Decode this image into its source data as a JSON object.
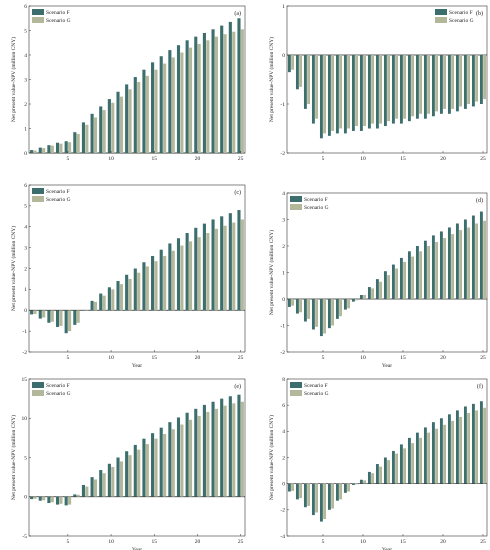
{
  "colors": {
    "scenario_f": "#3d6e6e",
    "scenario_g": "#b4b89a"
  },
  "chart_data": [
    {
      "type": "bar",
      "panel_label": "(a)",
      "ylabel": "Net present value-NPV (million CNY)",
      "xlabel": "",
      "ylim": [
        0,
        6
      ],
      "yticks": [
        0,
        1,
        2,
        3,
        4,
        5,
        6
      ],
      "xticks": [
        5,
        10,
        15,
        20,
        25
      ],
      "x": [
        1,
        2,
        3,
        4,
        5,
        6,
        7,
        8,
        9,
        10,
        11,
        12,
        13,
        14,
        15,
        16,
        17,
        18,
        19,
        20,
        21,
        22,
        23,
        24,
        25
      ],
      "legend": "top-left",
      "series": [
        {
          "name": "Scenario F",
          "values": [
            0.12,
            0.22,
            0.32,
            0.42,
            0.48,
            0.85,
            1.25,
            1.6,
            1.9,
            2.2,
            2.5,
            2.8,
            3.1,
            3.4,
            3.7,
            3.95,
            4.2,
            4.4,
            4.6,
            4.75,
            4.9,
            5.05,
            5.2,
            5.35,
            5.5
          ]
        },
        {
          "name": "Scenario G",
          "values": [
            0.1,
            0.2,
            0.3,
            0.38,
            0.44,
            0.78,
            1.15,
            1.45,
            1.75,
            2.05,
            2.3,
            2.6,
            2.9,
            3.15,
            3.4,
            3.65,
            3.9,
            4.1,
            4.3,
            4.45,
            4.6,
            4.75,
            4.85,
            4.95,
            5.05
          ]
        }
      ]
    },
    {
      "type": "bar",
      "panel_label": "(b)",
      "ylabel": "Net present value-NPV (million CNY)",
      "xlabel": "",
      "ylim": [
        -2,
        1
      ],
      "yticks": [
        -2,
        -1,
        0,
        1
      ],
      "xticks": [
        5,
        10,
        15,
        20,
        25
      ],
      "x": [
        1,
        2,
        3,
        4,
        5,
        6,
        7,
        8,
        9,
        10,
        11,
        12,
        13,
        14,
        15,
        16,
        17,
        18,
        19,
        20,
        21,
        22,
        23,
        24,
        25
      ],
      "legend": "top-right",
      "series": [
        {
          "name": "Scenario F",
          "values": [
            -0.35,
            -0.7,
            -1.1,
            -1.4,
            -1.7,
            -1.65,
            -1.6,
            -1.6,
            -1.55,
            -1.55,
            -1.5,
            -1.5,
            -1.45,
            -1.4,
            -1.4,
            -1.35,
            -1.3,
            -1.3,
            -1.25,
            -1.2,
            -1.2,
            -1.15,
            -1.1,
            -1.05,
            -1.0
          ]
        },
        {
          "name": "Scenario G",
          "values": [
            -0.3,
            -0.65,
            -1.0,
            -1.3,
            -1.6,
            -1.55,
            -1.5,
            -1.5,
            -1.45,
            -1.45,
            -1.4,
            -1.4,
            -1.35,
            -1.3,
            -1.3,
            -1.25,
            -1.2,
            -1.2,
            -1.15,
            -1.1,
            -1.1,
            -1.05,
            -1.0,
            -0.95,
            -0.9
          ]
        }
      ]
    },
    {
      "type": "bar",
      "panel_label": "(c)",
      "ylabel": "Net present value-NPV (million CNY)",
      "xlabel": "Year",
      "ylim": [
        -2,
        6
      ],
      "yticks": [
        -2,
        -1,
        0,
        1,
        2,
        3,
        4,
        5,
        6
      ],
      "xticks": [
        5,
        10,
        15,
        20,
        25
      ],
      "x": [
        1,
        2,
        3,
        4,
        5,
        6,
        7,
        8,
        9,
        10,
        11,
        12,
        13,
        14,
        15,
        16,
        17,
        18,
        19,
        20,
        21,
        22,
        23,
        24,
        25
      ],
      "legend": "top-left",
      "series": [
        {
          "name": "Scenario F",
          "values": [
            -0.2,
            -0.4,
            -0.6,
            -0.8,
            -1.1,
            -0.7,
            0.0,
            0.45,
            0.8,
            1.1,
            1.4,
            1.7,
            2.0,
            2.3,
            2.6,
            2.9,
            3.2,
            3.45,
            3.7,
            3.95,
            4.15,
            4.35,
            4.5,
            4.65,
            4.8
          ]
        },
        {
          "name": "Scenario G",
          "values": [
            -0.18,
            -0.35,
            -0.55,
            -0.75,
            -1.0,
            -0.6,
            0.0,
            0.4,
            0.7,
            1.0,
            1.25,
            1.5,
            1.8,
            2.1,
            2.35,
            2.6,
            2.85,
            3.1,
            3.3,
            3.5,
            3.7,
            3.9,
            4.05,
            4.2,
            4.35
          ]
        }
      ]
    },
    {
      "type": "bar",
      "panel_label": "(d)",
      "ylabel": "Net present value-NPV (million CNY)",
      "xlabel": "Year",
      "ylim": [
        -2,
        4
      ],
      "yticks": [
        -2,
        -1,
        0,
        1,
        2,
        3,
        4
      ],
      "xticks": [
        5,
        10,
        15,
        20,
        25
      ],
      "x": [
        1,
        2,
        3,
        4,
        5,
        6,
        7,
        8,
        9,
        10,
        11,
        12,
        13,
        14,
        15,
        16,
        17,
        18,
        19,
        20,
        21,
        22,
        23,
        24,
        25
      ],
      "legend": "top-left",
      "series": [
        {
          "name": "Scenario F",
          "values": [
            -0.3,
            -0.55,
            -0.85,
            -1.15,
            -1.4,
            -1.1,
            -0.75,
            -0.4,
            -0.1,
            0.15,
            0.45,
            0.75,
            1.05,
            1.3,
            1.55,
            1.8,
            2.0,
            2.2,
            2.4,
            2.55,
            2.7,
            2.85,
            3.0,
            3.15,
            3.3
          ]
        },
        {
          "name": "Scenario G",
          "values": [
            -0.25,
            -0.5,
            -0.75,
            -1.05,
            -1.3,
            -1.0,
            -0.65,
            -0.35,
            -0.05,
            0.15,
            0.4,
            0.65,
            0.9,
            1.15,
            1.4,
            1.6,
            1.8,
            2.0,
            2.15,
            2.3,
            2.45,
            2.6,
            2.7,
            2.85,
            2.95
          ]
        }
      ]
    },
    {
      "type": "bar",
      "panel_label": "(e)",
      "ylabel": "Net present value-NPV (million CNY)",
      "xlabel": "Year",
      "ylim": [
        -5,
        15
      ],
      "yticks": [
        -5,
        0,
        5,
        10,
        15
      ],
      "xticks": [
        5,
        10,
        15,
        20,
        25
      ],
      "x": [
        1,
        2,
        3,
        4,
        5,
        6,
        7,
        8,
        9,
        10,
        11,
        12,
        13,
        14,
        15,
        16,
        17,
        18,
        19,
        20,
        21,
        22,
        23,
        24,
        25
      ],
      "legend": "top-left",
      "series": [
        {
          "name": "Scenario F",
          "values": [
            -0.3,
            -0.5,
            -0.8,
            -1.0,
            -1.1,
            0.3,
            1.5,
            2.5,
            3.4,
            4.2,
            5.0,
            5.8,
            6.6,
            7.4,
            8.1,
            8.8,
            9.5,
            10.1,
            10.7,
            11.2,
            11.7,
            12.1,
            12.5,
            12.8,
            13.0
          ]
        },
        {
          "name": "Scenario G",
          "values": [
            -0.25,
            -0.45,
            -0.7,
            -0.9,
            -1.0,
            0.25,
            1.3,
            2.2,
            3.0,
            3.8,
            4.5,
            5.3,
            6.0,
            6.7,
            7.4,
            8.0,
            8.6,
            9.2,
            9.8,
            10.3,
            10.8,
            11.2,
            11.6,
            11.9,
            12.1
          ]
        }
      ]
    },
    {
      "type": "bar",
      "panel_label": "(f)",
      "ylabel": "Net present value-NPV (million CNY)",
      "xlabel": "Year",
      "ylim": [
        -4,
        8
      ],
      "yticks": [
        -4,
        -2,
        0,
        2,
        4,
        6,
        8
      ],
      "xticks": [
        5,
        10,
        15,
        20,
        25
      ],
      "x": [
        1,
        2,
        3,
        4,
        5,
        6,
        7,
        8,
        9,
        10,
        11,
        12,
        13,
        14,
        15,
        16,
        17,
        18,
        19,
        20,
        21,
        22,
        23,
        24,
        25
      ],
      "legend": "top-left",
      "series": [
        {
          "name": "Scenario F",
          "values": [
            -0.6,
            -1.2,
            -1.8,
            -2.4,
            -2.9,
            -2.0,
            -1.3,
            -0.7,
            -0.1,
            0.3,
            0.9,
            1.5,
            2.0,
            2.5,
            3.0,
            3.5,
            3.9,
            4.3,
            4.7,
            5.0,
            5.3,
            5.6,
            5.9,
            6.1,
            6.3
          ]
        },
        {
          "name": "Scenario G",
          "values": [
            -0.55,
            -1.1,
            -1.7,
            -2.2,
            -2.7,
            -1.9,
            -1.2,
            -0.6,
            -0.05,
            0.25,
            0.8,
            1.3,
            1.8,
            2.3,
            2.7,
            3.1,
            3.5,
            3.9,
            4.2,
            4.5,
            4.8,
            5.1,
            5.4,
            5.6,
            5.8
          ]
        }
      ]
    }
  ]
}
